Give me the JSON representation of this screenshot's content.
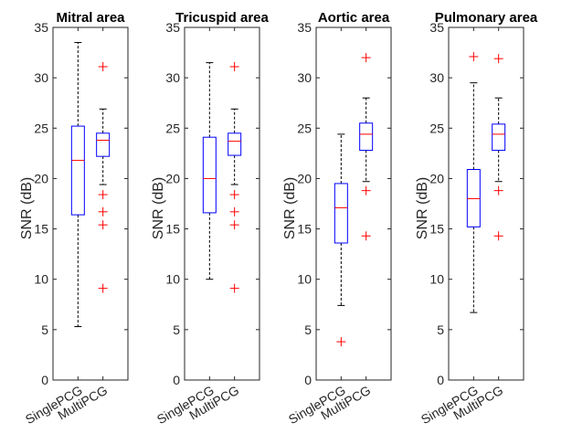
{
  "colors": {
    "box": "#0000ff",
    "median": "#ff0000",
    "outlier": "#ff0000",
    "whisker": "#000000",
    "axis": "#262626"
  },
  "chart_data": [
    {
      "type": "boxplot",
      "title": "Mitral area",
      "ylabel": "SNR (dB)",
      "ylim": [
        0,
        35
      ],
      "yticks": [
        0,
        5,
        10,
        15,
        20,
        25,
        30,
        35
      ],
      "categories": [
        "SinglePCG",
        "MultiPCG"
      ],
      "boxes": [
        {
          "lower_whisker": 5.3,
          "q1": 16.4,
          "median": 21.8,
          "q3": 25.2,
          "upper_whisker": 33.5,
          "outliers": []
        },
        {
          "lower_whisker": 19.4,
          "q1": 22.2,
          "median": 23.8,
          "q3": 24.5,
          "upper_whisker": 26.9,
          "outliers": [
            31.1,
            18.4,
            16.7,
            15.4,
            9.1
          ]
        }
      ]
    },
    {
      "type": "boxplot",
      "title": "Tricuspid area",
      "ylabel": "SNR (dB)",
      "ylim": [
        0,
        35
      ],
      "yticks": [
        0,
        5,
        10,
        15,
        20,
        25,
        30,
        35
      ],
      "categories": [
        "SinglePCG",
        "MultiPCG"
      ],
      "boxes": [
        {
          "lower_whisker": 10.0,
          "q1": 16.6,
          "median": 20.0,
          "q3": 24.1,
          "upper_whisker": 31.5,
          "outliers": []
        },
        {
          "lower_whisker": 19.4,
          "q1": 22.3,
          "median": 23.7,
          "q3": 24.5,
          "upper_whisker": 26.9,
          "outliers": [
            31.1,
            18.4,
            16.7,
            15.4,
            9.1
          ]
        }
      ]
    },
    {
      "type": "boxplot",
      "title": "Aortic area",
      "ylabel": "SNR (dB)",
      "ylim": [
        0,
        35
      ],
      "yticks": [
        0,
        5,
        10,
        15,
        20,
        25,
        30,
        35
      ],
      "categories": [
        "SinglePCG",
        "MultiPCG"
      ],
      "boxes": [
        {
          "lower_whisker": 7.4,
          "q1": 13.6,
          "median": 17.1,
          "q3": 19.5,
          "upper_whisker": 24.4,
          "outliers": [
            3.8
          ]
        },
        {
          "lower_whisker": 19.7,
          "q1": 22.8,
          "median": 24.4,
          "q3": 25.5,
          "upper_whisker": 28.0,
          "outliers": [
            32.0,
            18.8,
            14.3
          ]
        }
      ]
    },
    {
      "type": "boxplot",
      "title": "Pulmonary area",
      "ylabel": "SNR (dB)",
      "ylim": [
        0,
        35
      ],
      "yticks": [
        0,
        5,
        10,
        15,
        20,
        25,
        30,
        35
      ],
      "categories": [
        "SinglePCG",
        "MultiPCG"
      ],
      "boxes": [
        {
          "lower_whisker": 6.7,
          "q1": 15.2,
          "median": 18.0,
          "q3": 20.9,
          "upper_whisker": 29.5,
          "outliers": [
            32.1
          ]
        },
        {
          "lower_whisker": 19.7,
          "q1": 22.8,
          "median": 24.4,
          "q3": 25.4,
          "upper_whisker": 28.0,
          "outliers": [
            31.9,
            18.8,
            14.3
          ]
        }
      ]
    }
  ]
}
